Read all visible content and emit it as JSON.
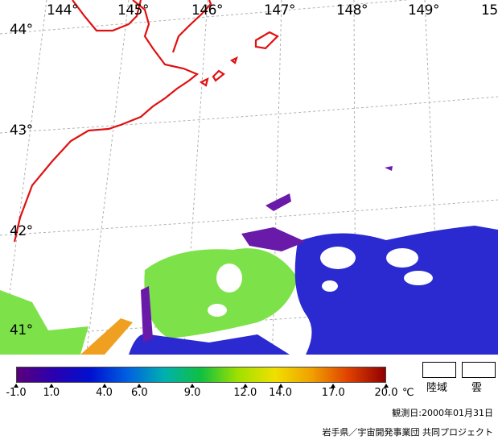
{
  "map": {
    "longitude_labels": [
      "144°",
      "145°",
      "146°",
      "147°",
      "148°",
      "149°",
      "15"
    ],
    "latitude_labels": [
      "44°",
      "43°",
      "42°",
      "41°"
    ],
    "colors": {
      "coastline": "#e01010",
      "grid": "#b0b0b0",
      "cold": "#2a2ad0",
      "mid": "#7de24a",
      "warm": "#f0a020",
      "coldest": "#6a1aa8"
    }
  },
  "scale": {
    "min": -1.0,
    "max": 20.0,
    "ticks": [
      "-1.0",
      "1.0",
      "4.0",
      "6.0",
      "9.0",
      "12.0",
      "14.0",
      "17.0",
      "20.0"
    ],
    "tick_values": [
      -1,
      1,
      4,
      6,
      9,
      12,
      14,
      17,
      20
    ],
    "unit": "℃",
    "gradient_colors": [
      "#5a007a",
      "#2a00b0",
      "#0010d0",
      "#0060e0",
      "#00b0b0",
      "#10c040",
      "#a0e000",
      "#f0e000",
      "#f0a000",
      "#e04000",
      "#900000"
    ]
  },
  "legend": {
    "land": "陸域",
    "cloud": "雲"
  },
  "obs_date": "観測日:2000年01月31日",
  "credit": "岩手県／宇宙開発事業団 共同プロジェクト"
}
